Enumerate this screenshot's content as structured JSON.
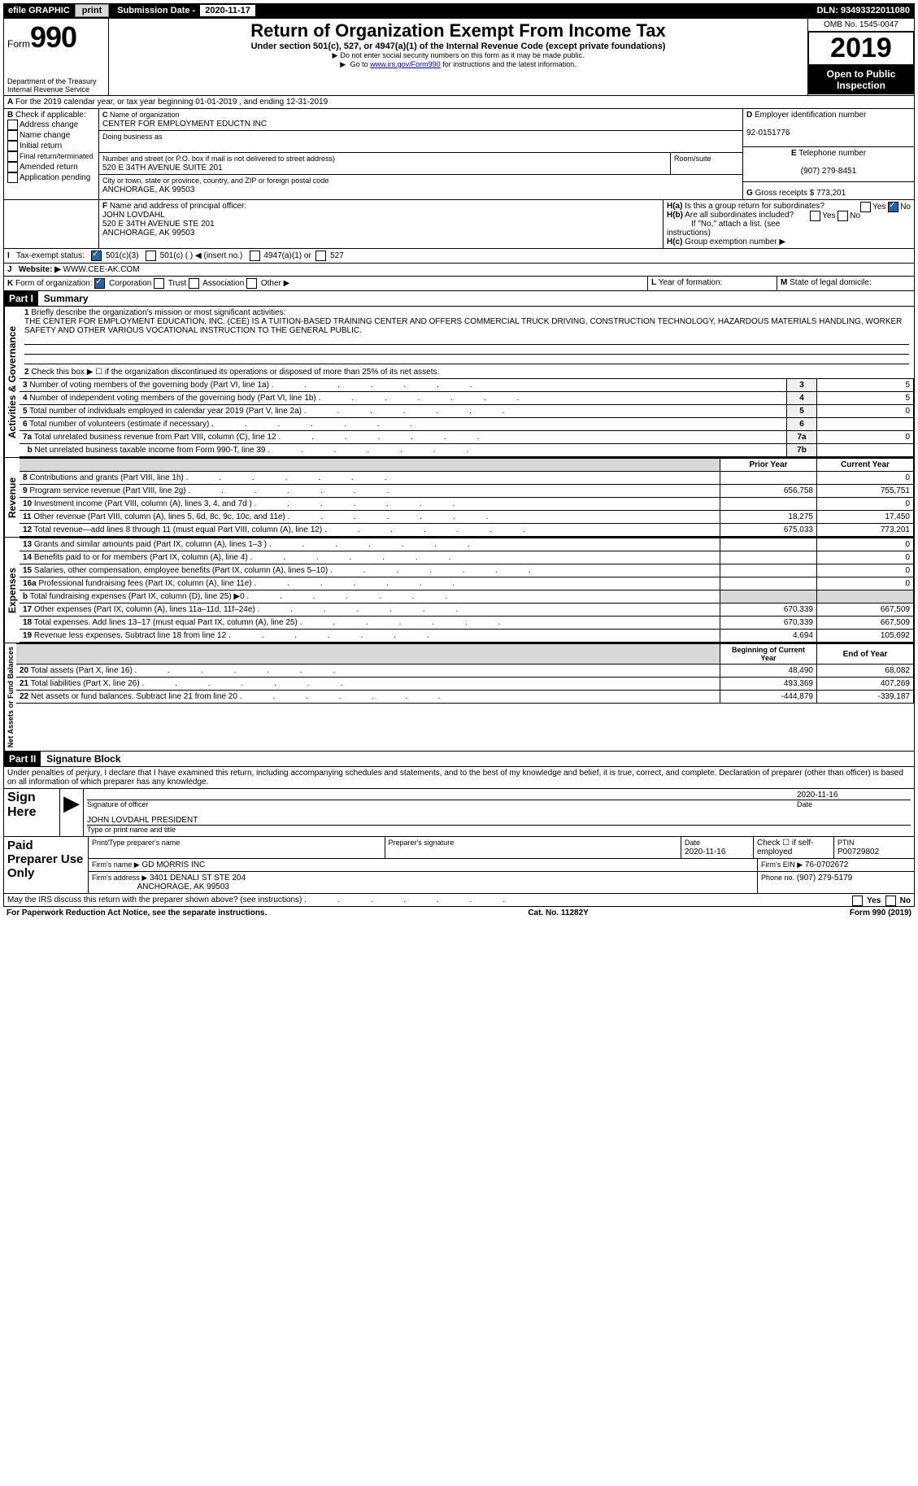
{
  "topbar": {
    "efile": "efile GRAPHIC",
    "print": "print",
    "subdate_label": "Submission Date - ",
    "subdate": "2020-11-17",
    "dln": "DLN: 93493322011080"
  },
  "hdr": {
    "form_word": "Form",
    "form_num": "990",
    "dept1": "Department of the Treasury",
    "dept2": "Internal Revenue Service",
    "title": "Return of Organization Exempt From Income Tax",
    "subtitle": "Under section 501(c), 527, or 4947(a)(1) of the Internal Revenue Code (except private foundations)",
    "note1": "Do not enter social security numbers on this form as it may be made public.",
    "note2_a": "Go to ",
    "note2_link": "www.irs.gov/Form990",
    "note2_b": " for instructions and the latest information.",
    "omb": "OMB No. 1545-0047",
    "year": "2019",
    "open": "Open to Public Inspection"
  },
  "A": {
    "line": "For the 2019 calendar year, or tax year beginning 01-01-2019   , and ending 12-31-2019"
  },
  "B": {
    "label": "Check if applicable:",
    "items": [
      "Address change",
      "Name change",
      "Initial return",
      "Final return/terminated",
      "Amended return",
      "Application pending"
    ]
  },
  "C": {
    "name_lbl": "Name of organization",
    "name": "CENTER FOR EMPLOYMENT EDUCTN INC",
    "dba_lbl": "Doing business as",
    "addr_lbl": "Number and street (or P.O. box if mail is not delivered to street address)",
    "room_lbl": "Room/suite",
    "addr": "520 E 34TH AVENUE SUITE 201",
    "city_lbl": "City or town, state or province, country, and ZIP or foreign postal code",
    "city": "ANCHORAGE, AK  99503"
  },
  "D": {
    "lbl": "Employer identification number",
    "val": "92-0151776"
  },
  "E": {
    "lbl": "Telephone number",
    "val": "(907) 279-8451"
  },
  "G": {
    "lbl": "Gross receipts $",
    "val": "773,201"
  },
  "F": {
    "lbl": "Name and address of principal officer:",
    "name": "JOHN LOVDAHL",
    "addr1": "520 E 34TH AVENUE STE 201",
    "addr2": "ANCHORAGE, AK  99503"
  },
  "H": {
    "a": "Is this a group return for subordinates?",
    "b": "Are all subordinates included?",
    "b_note": "If \"No,\" attach a list. (see instructions)",
    "c": "Group exemption number ▶",
    "yes": "Yes",
    "no": "No"
  },
  "I": {
    "lbl": "Tax-exempt status:",
    "opt1": "501(c)(3)",
    "opt2": "501(c) (  ) ◀ (insert no.)",
    "opt3": "4947(a)(1) or",
    "opt4": "527"
  },
  "J": {
    "lbl": "Website: ▶",
    "val": "WWW.CEE-AK.COM"
  },
  "K": {
    "lbl": "Form of organization:",
    "o1": "Corporation",
    "o2": "Trust",
    "o3": "Association",
    "o4": "Other ▶"
  },
  "L": {
    "lbl": "Year of formation:"
  },
  "M": {
    "lbl": "State of legal domicile:"
  },
  "parts": {
    "p1": "Part I",
    "p1t": "Summary",
    "p2": "Part II",
    "p2t": "Signature Block"
  },
  "sidebars": {
    "ag": "Activities & Governance",
    "rev": "Revenue",
    "exp": "Expenses",
    "na": "Net Assets or Fund Balances"
  },
  "summary": {
    "l1_lbl": "Briefly describe the organization's mission or most significant activities:",
    "l1_txt": "THE CENTER FOR EMPLOYMENT EDUCATION, INC. (CEE) IS A TUITION-BASED TRAINING CENTER AND OFFERS COMMERCIAL TRUCK DRIVING, CONSTRUCTION TECHNOLOGY, HAZARDOUS MATERIALS HANDLING, WORKER SAFETY AND OTHER VARIOUS VOCATIONAL INSTRUCTION TO THE GENERAL PUBLIC.",
    "l2": "Check this box ▶ ☐ if the organization discontinued its operations or disposed of more than 25% of its net assets.",
    "l3": "Number of voting members of the governing body (Part VI, line 1a)",
    "l4": "Number of independent voting members of the governing body (Part VI, line 1b)",
    "l5": "Total number of individuals employed in calendar year 2019 (Part V, line 2a)",
    "l6": "Total number of volunteers (estimate if necessary)",
    "l7a": "Total unrelated business revenue from Part VIII, column (C), line 12",
    "l7b": "Net unrelated business taxable income from Form 990-T, line 39",
    "v3": "5",
    "v4": "5",
    "v5": "0",
    "v6": "",
    "v7a": "0",
    "v7b": ""
  },
  "revTable": {
    "hdr_prior": "Prior Year",
    "hdr_curr": "Current Year",
    "rows": [
      {
        "n": "8",
        "t": "Contributions and grants (Part VIII, line 1h)",
        "p": "",
        "c": "0"
      },
      {
        "n": "9",
        "t": "Program service revenue (Part VIII, line 2g)",
        "p": "656,758",
        "c": "755,751"
      },
      {
        "n": "10",
        "t": "Investment income (Part VIII, column (A), lines 3, 4, and 7d )",
        "p": "",
        "c": "0"
      },
      {
        "n": "11",
        "t": "Other revenue (Part VIII, column (A), lines 5, 6d, 8c, 9c, 10c, and 11e)",
        "p": "18,275",
        "c": "17,450"
      },
      {
        "n": "12",
        "t": "Total revenue—add lines 8 through 11 (must equal Part VIII, column (A), line 12)",
        "p": "675,033",
        "c": "773,201"
      }
    ]
  },
  "expTable": {
    "rows": [
      {
        "n": "13",
        "t": "Grants and similar amounts paid (Part IX, column (A), lines 1–3 )",
        "p": "",
        "c": "0"
      },
      {
        "n": "14",
        "t": "Benefits paid to or for members (Part IX, column (A), line 4)",
        "p": "",
        "c": "0"
      },
      {
        "n": "15",
        "t": "Salaries, other compensation, employee benefits (Part IX, column (A), lines 5–10)",
        "p": "",
        "c": "0"
      },
      {
        "n": "16a",
        "t": "Professional fundraising fees (Part IX, column (A), line 11e)",
        "p": "",
        "c": "0"
      },
      {
        "n": "b",
        "t": "Total fundraising expenses (Part IX, column (D), line 25) ▶0",
        "p": "__SHADE__",
        "c": "__SHADE__"
      },
      {
        "n": "17",
        "t": "Other expenses (Part IX, column (A), lines 11a–11d, 11f–24e)",
        "p": "670,339",
        "c": "667,509"
      },
      {
        "n": "18",
        "t": "Total expenses. Add lines 13–17 (must equal Part IX, column (A), line 25)",
        "p": "670,339",
        "c": "667,509"
      },
      {
        "n": "19",
        "t": "Revenue less expenses. Subtract line 18 from line 12",
        "p": "4,694",
        "c": "105,692"
      }
    ]
  },
  "naTable": {
    "hdr_b": "Beginning of Current Year",
    "hdr_e": "End of Year",
    "rows": [
      {
        "n": "20",
        "t": "Total assets (Part X, line 16)",
        "p": "48,490",
        "c": "68,082"
      },
      {
        "n": "21",
        "t": "Total liabilities (Part X, line 26)",
        "p": "493,369",
        "c": "407,269"
      },
      {
        "n": "22",
        "t": "Net assets or fund balances. Subtract line 21 from line 20",
        "p": "-444,879",
        "c": "-339,187"
      }
    ]
  },
  "sig": {
    "decl": "Under penalties of perjury, I declare that I have examined this return, including accompanying schedules and statements, and to the best of my knowledge and belief, it is true, correct, and complete. Declaration of preparer (other than officer) is based on all information of which preparer has any knowledge.",
    "sign_here": "Sign Here",
    "sig_officer": "Signature of officer",
    "date": "Date",
    "date_val": "2020-11-16",
    "name_title": "JOHN LOVDAHL  PRESIDENT",
    "type_name": "Type or print name and title",
    "paid": "Paid Preparer Use Only",
    "prep_name_lbl": "Print/Type preparer's name",
    "prep_sig_lbl": "Preparer's signature",
    "prep_date_lbl": "Date",
    "prep_date": "2020-11-16",
    "check_lbl": "Check ☐ if self-employed",
    "ptin_lbl": "PTIN",
    "ptin": "P00729802",
    "firm_name_lbl": "Firm's name   ▶",
    "firm_name": "GD MORRIS INC",
    "firm_ein_lbl": "Firm's EIN ▶",
    "firm_ein": "76-0702672",
    "firm_addr_lbl": "Firm's address ▶",
    "firm_addr1": "3401 DENALI ST STE 204",
    "firm_addr2": "ANCHORAGE, AK  99503",
    "phone_lbl": "Phone no.",
    "phone": "(907) 279-5179",
    "may_irs": "May the IRS discuss this return with the preparer shown above? (see instructions)"
  },
  "footer": {
    "pra": "For Paperwork Reduction Act Notice, see the separate instructions.",
    "cat": "Cat. No. 11282Y",
    "form": "Form 990 (2019)"
  }
}
